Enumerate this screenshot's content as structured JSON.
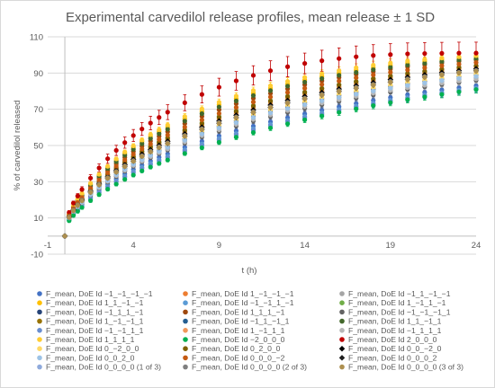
{
  "chart_data": {
    "type": "scatter",
    "title": "Experimental carvedilol release profiles, mean release ± 1 SD",
    "xlabel": "t (h)",
    "ylabel": "% of carvedilol released",
    "xlim": [
      -1,
      24
    ],
    "ylim": [
      -10,
      110
    ],
    "xticks": [
      -1,
      4,
      9,
      14,
      19,
      24
    ],
    "yticks": [
      -10,
      10,
      30,
      50,
      70,
      90,
      110
    ],
    "grid": "horizontal",
    "legend_position": "bottom",
    "error_bars": "±1 SD",
    "x": [
      0,
      0.25,
      0.5,
      0.75,
      1,
      1.5,
      2,
      2.5,
      3,
      3.5,
      4,
      4.5,
      5,
      5.5,
      6,
      7,
      8,
      9,
      10,
      11,
      12,
      13,
      14,
      15,
      16,
      17,
      18,
      19,
      20,
      21,
      22,
      23,
      24
    ],
    "series": [
      {
        "name": "F_mean, DoE Id −1_−1_−1_−1",
        "color": "#4472c4",
        "values": [
          0,
          9.5,
          12.8,
          15.3,
          17.6,
          21.7,
          25.3,
          28.6,
          31.6,
          34.3,
          36.8,
          39.2,
          41.4,
          43.5,
          45.4,
          49,
          52.3,
          55.3,
          58.1,
          60.7,
          63.1,
          65.4,
          67.5,
          69.5,
          71.4,
          73.2,
          74.9,
          76.5,
          78,
          79.4,
          80.7,
          81.9,
          83
        ]
      },
      {
        "name": "F_mean, DoE Id 1_−1_−1_−1",
        "color": "#ed7d31",
        "values": [
          0,
          10.5,
          14.3,
          17.2,
          19.8,
          24.4,
          28.5,
          32.2,
          35.6,
          38.7,
          41.6,
          44.3,
          46.8,
          49.1,
          51.3,
          55.4,
          59.1,
          62.5,
          65.6,
          68.5,
          71.2,
          73.7,
          76,
          78.1,
          80.1,
          81.9,
          83.6,
          85.1,
          86.5,
          87.8,
          89,
          90.1,
          91
        ]
      },
      {
        "name": "F_mean, DoE Id −1_1_−1_−1",
        "color": "#a5a5a5",
        "values": [
          0,
          10,
          13.5,
          16.2,
          18.7,
          23.1,
          27,
          30.5,
          33.7,
          36.6,
          39.3,
          41.8,
          44.2,
          46.4,
          48.4,
          52.3,
          55.8,
          58.9,
          61.9,
          64.6,
          67.1,
          69.4,
          71.6,
          73.7,
          75.6,
          77.4,
          79,
          80.6,
          82,
          83.4,
          84.6,
          85.8,
          86.9
        ]
      },
      {
        "name": "F_mean, DoE Id 1_1_−1_−1",
        "color": "#ffc000",
        "values": [
          0,
          12,
          16.5,
          20,
          23.1,
          28.6,
          33.5,
          37.9,
          41.9,
          45.6,
          49,
          52.1,
          55,
          57.7,
          60.2,
          64.8,
          68.9,
          72.6,
          75.9,
          78.9,
          81.6,
          84,
          86.2,
          88.2,
          90,
          91.6,
          93,
          94.3,
          95.5,
          96.5,
          97.4,
          98.2,
          98.9
        ]
      },
      {
        "name": "F_mean, DoE Id −1_−1_1_−1",
        "color": "#5b9bd5",
        "values": [
          0,
          9,
          12.1,
          14.6,
          16.8,
          20.8,
          24.3,
          27.5,
          30.4,
          33.1,
          35.6,
          37.9,
          40.1,
          42.1,
          44,
          47.6,
          50.8,
          53.8,
          56.6,
          59.2,
          61.6,
          63.9,
          66,
          68,
          69.9,
          71.7,
          73.4,
          75,
          76.5,
          77.9,
          79.2,
          80.5,
          81.7
        ]
      },
      {
        "name": "F_mean, DoE Id 1_−1_1_−1",
        "color": "#70ad47",
        "values": [
          0,
          11,
          15,
          18.1,
          20.9,
          25.8,
          30.2,
          34.1,
          37.7,
          41,
          44.1,
          46.9,
          49.6,
          52.1,
          54.4,
          58.7,
          62.5,
          66,
          69.2,
          72.1,
          74.8,
          77.3,
          79.6,
          81.7,
          83.6,
          85.4,
          87,
          88.5,
          89.9,
          91.1,
          92.2,
          93.2,
          94.1
        ]
      },
      {
        "name": "F_mean, DoE Id −1_1_1_−1",
        "color": "#264478",
        "values": [
          0,
          10.2,
          13.8,
          16.6,
          19.1,
          23.6,
          27.6,
          31.2,
          34.5,
          37.5,
          40.3,
          42.9,
          45.3,
          47.6,
          49.7,
          53.7,
          57.3,
          60.6,
          63.6,
          66.4,
          69,
          71.4,
          73.7,
          75.8,
          77.7,
          79.5,
          81.2,
          82.8,
          84.2,
          85.5,
          86.7,
          87.8,
          88.8
        ]
      },
      {
        "name": "F_mean, DoE Id 1_1_1_−1",
        "color": "#9e480e",
        "values": [
          0,
          11.5,
          15.8,
          19.1,
          22.1,
          27.3,
          31.9,
          36.1,
          39.9,
          43.4,
          46.7,
          49.7,
          52.5,
          55.1,
          57.6,
          62.1,
          66.1,
          69.8,
          73.1,
          76.1,
          78.8,
          81.3,
          83.6,
          85.7,
          87.6,
          89.3,
          90.8,
          92.2,
          93.5,
          94.6,
          95.6,
          96.5,
          97.3
        ]
      },
      {
        "name": "F_mean, DoE Id −1_−1_−1_1",
        "color": "#636363",
        "values": [
          0,
          9.8,
          13.2,
          15.9,
          18.3,
          22.6,
          26.4,
          29.8,
          32.9,
          35.8,
          38.5,
          41,
          43.3,
          45.5,
          47.5,
          51.3,
          54.7,
          57.9,
          60.8,
          63.5,
          66,
          68.3,
          70.5,
          72.5,
          74.4,
          76.2,
          77.9,
          79.5,
          81,
          82.4,
          83.7,
          84.9,
          86
        ]
      },
      {
        "name": "F_mean, DoE Id 1_−1_−1_1",
        "color": "#997300",
        "values": [
          0,
          10.8,
          14.7,
          17.7,
          20.4,
          25.2,
          29.5,
          33.3,
          36.8,
          40,
          43,
          45.8,
          48.4,
          50.8,
          53.1,
          57.3,
          61.1,
          64.6,
          67.8,
          70.7,
          73.4,
          75.9,
          78.2,
          80.3,
          82.3,
          84.1,
          85.8,
          87.3,
          88.7,
          90,
          91.2,
          92.3,
          93.2
        ]
      },
      {
        "name": "F_mean, DoE Id −1_1_−1_1",
        "color": "#255e91",
        "values": [
          0,
          10.1,
          13.7,
          16.4,
          18.9,
          23.4,
          27.3,
          30.9,
          34.1,
          37.1,
          39.8,
          42.4,
          44.8,
          47,
          49.1,
          53,
          56.6,
          59.8,
          62.8,
          65.6,
          68.1,
          70.5,
          72.7,
          74.7,
          76.6,
          78.4,
          80.1,
          81.7,
          83.1,
          84.5,
          85.7,
          86.9,
          88
        ]
      },
      {
        "name": "F_mean, DoE Id 1_1_−1_1",
        "color": "#43682b",
        "values": [
          0,
          11.8,
          16.2,
          19.6,
          22.6,
          28,
          32.8,
          37.1,
          41,
          44.6,
          47.9,
          51,
          53.9,
          56.5,
          59,
          63.5,
          67.6,
          71.3,
          74.6,
          77.6,
          80.3,
          82.8,
          85,
          87,
          88.8,
          90.4,
          91.9,
          93.2,
          94.4,
          95.4,
          96.3,
          97.1,
          97.8
        ]
      },
      {
        "name": "F_mean, DoE Id −1_−1_1_1",
        "color": "#698ed0",
        "values": [
          0,
          8.8,
          11.9,
          14.3,
          16.5,
          20.4,
          23.9,
          27,
          29.9,
          32.5,
          35,
          37.3,
          39.4,
          41.4,
          43.3,
          46.9,
          50.1,
          53.1,
          55.9,
          58.5,
          60.9,
          63.2,
          65.3,
          67.3,
          69.2,
          71,
          72.7,
          74.3,
          75.8,
          77.3,
          78.6,
          79.9,
          81.1
        ]
      },
      {
        "name": "F_mean, DoE Id 1_−1_1_1",
        "color": "#f1975a",
        "values": [
          0,
          10.7,
          14.6,
          17.6,
          20.3,
          25.1,
          29.3,
          33.1,
          36.6,
          39.8,
          42.8,
          45.6,
          48.2,
          50.6,
          52.9,
          57.1,
          60.9,
          64.4,
          67.6,
          70.5,
          73.2,
          75.7,
          78,
          80.1,
          82.1,
          83.9,
          85.6,
          87.1,
          88.5,
          89.8,
          91,
          92.1,
          93
        ]
      },
      {
        "name": "F_mean, DoE Id −1_1_1_1",
        "color": "#b7b7b7",
        "values": [
          0,
          9.9,
          13.4,
          16.1,
          18.5,
          22.9,
          26.7,
          30.2,
          33.4,
          36.3,
          39,
          41.5,
          43.9,
          46.1,
          48.1,
          52,
          55.5,
          58.7,
          61.7,
          64.4,
          66.9,
          69.3,
          71.5,
          73.5,
          75.4,
          77.2,
          78.9,
          80.5,
          81.9,
          83.3,
          84.5,
          85.7,
          86.8
        ]
      },
      {
        "name": "F_mean, DoE Id 1_1_1_1",
        "color": "#ffcd33",
        "values": [
          0,
          12.2,
          16.8,
          20.3,
          23.5,
          29.1,
          34.1,
          38.5,
          42.6,
          46.4,
          49.8,
          53,
          56,
          58.7,
          61.3,
          66,
          70.2,
          73.9,
          77.3,
          80.3,
          83,
          85.4,
          87.6,
          89.6,
          91.3,
          92.9,
          94.3,
          95.5,
          96.6,
          97.5,
          98.3,
          99,
          99.6
        ]
      },
      {
        "name": "F_mean, DoE Id −2_0_0_0",
        "color": "#00b050",
        "values": [
          0,
          8.5,
          11.4,
          13.7,
          15.8,
          19.6,
          22.9,
          25.9,
          28.7,
          31.3,
          33.7,
          36,
          38.1,
          40.1,
          42,
          45.6,
          48.8,
          51.8,
          54.6,
          57.2,
          59.7,
          62,
          64.2,
          66.3,
          68.3,
          70.2,
          72,
          73.7,
          75.3,
          76.8,
          78.2,
          79.6,
          80.9
        ]
      },
      {
        "name": "F_mean, DoE Id 2_0_0_0",
        "color": "#c00000",
        "values": [
          0,
          13,
          18.2,
          22.1,
          25.7,
          32,
          37.6,
          42.7,
          47.3,
          51.6,
          55.5,
          59.1,
          62.4,
          65.5,
          68.4,
          73.6,
          78.2,
          82.2,
          85.7,
          88.7,
          91.3,
          93.5,
          95.3,
          96.8,
          98,
          99,
          99.7,
          100.2,
          100.6,
          100.8,
          100.9,
          101,
          101
        ]
      },
      {
        "name": "F_mean, DoE Id 0_−2_0_0",
        "color": "#ffd966",
        "values": [
          0,
          10.3,
          14,
          16.8,
          19.4,
          23.9,
          27.9,
          31.5,
          34.8,
          37.9,
          40.7,
          43.3,
          45.8,
          48.1,
          50.3,
          54.3,
          57.9,
          61.2,
          64.3,
          67.1,
          69.7,
          72.1,
          74.3,
          76.4,
          78.4,
          80.2,
          81.9,
          83.4,
          84.9,
          86.2,
          87.4,
          88.6,
          89.6
        ]
      },
      {
        "name": "F_mean, DoE Id 0_2_0_0",
        "color": "#7f6000",
        "values": [
          0,
          10.9,
          14.9,
          17.9,
          20.7,
          25.6,
          29.9,
          33.8,
          37.4,
          40.7,
          43.7,
          46.6,
          49.2,
          51.7,
          54,
          58.3,
          62.1,
          65.6,
          68.8,
          71.8,
          74.5,
          77,
          79.3,
          81.4,
          83.4,
          85.2,
          86.8,
          88.3,
          89.7,
          90.9,
          92.1,
          93.1,
          94
        ]
      },
      {
        "name": "F_mean, DoE Id 0_0_−2_0",
        "color": "#000000",
        "values": [
          0,
          10.6,
          14.4,
          17.4,
          20.1,
          24.8,
          29,
          32.7,
          36.2,
          39.4,
          42.3,
          45.1,
          47.6,
          50,
          52.3,
          56.4,
          60.1,
          63.5,
          66.7,
          69.6,
          72.3,
          74.8,
          77.1,
          79.2,
          81.2,
          83,
          84.7,
          86.3,
          87.7,
          89,
          90.2,
          91.3,
          92.3
        ]
      },
      {
        "name": "F_mean, DoE Id 0_0_2_0",
        "color": "#9dc3e6",
        "values": [
          0,
          10,
          13.6,
          16.3,
          18.8,
          23.2,
          27.2,
          30.7,
          33.9,
          36.9,
          39.7,
          42.2,
          44.6,
          46.9,
          49,
          52.9,
          56.4,
          59.7,
          62.7,
          65.5,
          68,
          70.4,
          72.6,
          74.7,
          76.6,
          78.4,
          80.1,
          81.7,
          83.2,
          84.6,
          85.9,
          87.1,
          88.2
        ]
      },
      {
        "name": "F_mean, DoE Id 0_0_0_−2",
        "color": "#c55a11",
        "values": [
          0,
          11.2,
          15.3,
          18.5,
          21.3,
          26.4,
          30.9,
          34.9,
          38.6,
          42,
          45.2,
          48.1,
          50.8,
          53.4,
          55.8,
          60.2,
          64.1,
          67.7,
          71,
          74,
          76.8,
          79.3,
          81.6,
          83.7,
          85.6,
          87.4,
          89,
          90.4,
          91.7,
          92.9,
          94,
          94.9,
          95.8
        ]
      },
      {
        "name": "F_mean, DoE Id 0_0_0_2",
        "color": "#1f1f1f",
        "values": [
          0,
          10.4,
          14.1,
          17,
          19.6,
          24.2,
          28.3,
          32,
          35.4,
          38.5,
          41.4,
          44.1,
          46.6,
          48.9,
          51.1,
          55.2,
          58.9,
          62.3,
          65.4,
          68.3,
          71,
          73.5,
          75.8,
          77.9,
          79.9,
          81.7,
          83.4,
          85,
          86.5,
          87.8,
          89.1,
          90.2,
          91.3
        ]
      },
      {
        "name": "F_mean, DoE Id 0_0_0_0 (1 of 3)",
        "color": "#8faadc",
        "values": [
          0,
          10.4,
          14.2,
          17.1,
          19.7,
          24.3,
          28.4,
          32.1,
          35.5,
          38.6,
          41.5,
          44.2,
          46.7,
          49.1,
          51.3,
          55.4,
          59.1,
          62.5,
          65.6,
          68.5,
          71.2,
          73.7,
          76,
          78.1,
          80.1,
          81.9,
          83.6,
          85.2,
          86.6,
          87.9,
          89.2,
          90.3,
          91.3
        ]
      },
      {
        "name": "F_mean, DoE Id 0_0_0_0 (2 of 3)",
        "color": "#7f7f7f",
        "values": [
          0,
          10.5,
          14.3,
          17.2,
          19.8,
          24.5,
          28.6,
          32.3,
          35.7,
          38.8,
          41.7,
          44.4,
          46.9,
          49.3,
          51.5,
          55.6,
          59.3,
          62.7,
          65.8,
          68.7,
          71.4,
          73.9,
          76.2,
          78.3,
          80.3,
          82.1,
          83.8,
          85.4,
          86.8,
          88.1,
          89.4,
          90.5,
          91.5
        ]
      },
      {
        "name": "F_mean, DoE Id 0_0_0_0 (3 of 3)",
        "color": "#ad8f4f",
        "values": [
          0,
          10.3,
          14,
          16.9,
          19.5,
          24.1,
          28.2,
          31.9,
          35.3,
          38.4,
          41.3,
          44,
          46.5,
          48.9,
          51.1,
          55.2,
          58.9,
          62.3,
          65.4,
          68.3,
          71,
          73.5,
          75.8,
          77.9,
          79.9,
          81.7,
          83.4,
          85,
          86.4,
          87.7,
          89,
          90.1,
          91.1
        ]
      }
    ]
  }
}
